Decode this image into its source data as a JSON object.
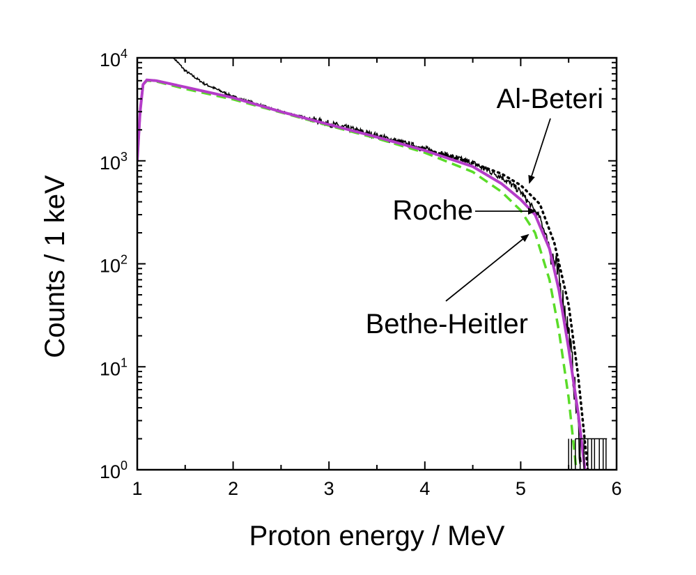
{
  "chart_data": {
    "type": "line",
    "xlabel": "Proton energy / MeV",
    "ylabel": "Counts / 1 keV",
    "xlim": [
      1,
      6
    ],
    "ylim": [
      1,
      10000
    ],
    "yscale": "log",
    "grid": false,
    "x_ticks": [
      "1",
      "2",
      "3",
      "4",
      "5",
      "6"
    ],
    "y_ticks": [
      {
        "base": "10",
        "exp": "0"
      },
      {
        "base": "10",
        "exp": "1"
      },
      {
        "base": "10",
        "exp": "2"
      },
      {
        "base": "10",
        "exp": "3"
      },
      {
        "base": "10",
        "exp": "4"
      }
    ],
    "series": [
      {
        "key": "data",
        "color": "#000000",
        "style": "noisy-solid",
        "x": [
          1.38,
          1.5,
          1.7,
          2.0,
          2.5,
          3.0,
          3.5,
          4.0,
          4.5,
          4.8,
          5.0,
          5.2,
          5.3,
          5.4,
          5.5,
          5.55,
          5.6,
          5.63
        ],
        "y": [
          10000,
          7500,
          5600,
          4200,
          3000,
          2300,
          1750,
          1300,
          950,
          700,
          500,
          280,
          150,
          70,
          22,
          8,
          2.5,
          1
        ]
      },
      {
        "key": "roche",
        "name": "Roche",
        "color": "#b43cc8",
        "style": "solid",
        "x": [
          1.0,
          1.03,
          1.06,
          1.1,
          1.2,
          1.5,
          2.0,
          2.5,
          3.0,
          3.5,
          4.0,
          4.5,
          4.8,
          5.0,
          5.15,
          5.3,
          5.4,
          5.5,
          5.6,
          5.67
        ],
        "y": [
          1000,
          3000,
          5500,
          6100,
          6000,
          5200,
          4100,
          3000,
          2250,
          1700,
          1260,
          880,
          600,
          420,
          300,
          140,
          55,
          15,
          3.5,
          1
        ]
      },
      {
        "key": "al_beteri",
        "name": "Al-Beteri",
        "color": "#000000",
        "style": "dotted",
        "x": [
          1.0,
          1.03,
          1.06,
          1.1,
          1.2,
          1.5,
          2.0,
          2.5,
          3.0,
          3.5,
          4.0,
          4.5,
          4.8,
          5.0,
          5.2,
          5.35,
          5.5,
          5.6,
          5.7
        ],
        "y": [
          1000,
          3000,
          5500,
          6100,
          6000,
          5200,
          4100,
          3000,
          2250,
          1700,
          1300,
          950,
          750,
          580,
          380,
          160,
          40,
          8,
          1
        ]
      },
      {
        "key": "bethe_heitler",
        "name": "Bethe-Heitler",
        "color": "#5adc28",
        "style": "dashed",
        "x": [
          1.0,
          1.03,
          1.06,
          1.1,
          1.2,
          1.5,
          2.0,
          2.5,
          3.0,
          3.5,
          4.0,
          4.5,
          4.8,
          5.0,
          5.15,
          5.3,
          5.4,
          5.5,
          5.58
        ],
        "y": [
          1000,
          3000,
          5500,
          6000,
          5900,
          5000,
          3950,
          2950,
          2200,
          1650,
          1200,
          780,
          500,
          330,
          200,
          70,
          22,
          5,
          1
        ]
      }
    ],
    "annotations": [
      {
        "text": "Al-Beteri",
        "target_series": "al_beteri"
      },
      {
        "text": "Roche",
        "target_series": "roche"
      },
      {
        "text": "Bethe-Heitler",
        "target_series": "bethe_heitler"
      }
    ]
  }
}
